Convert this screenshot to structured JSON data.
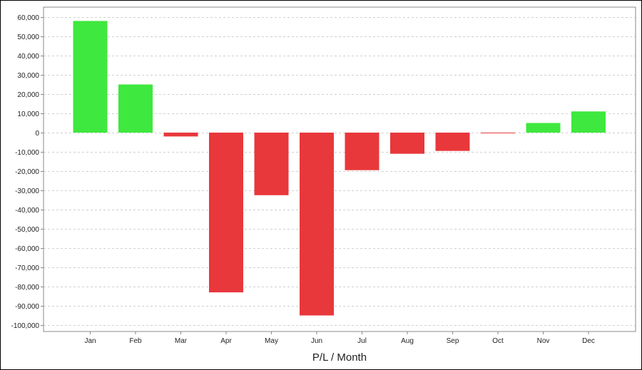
{
  "chart_data": {
    "type": "bar",
    "title": "",
    "xlabel": "P/L / Month",
    "ylabel": "",
    "categories": [
      "Jan",
      "Feb",
      "Mar",
      "Apr",
      "May",
      "Jun",
      "Jul",
      "Aug",
      "Sep",
      "Oct",
      "Nov",
      "Dec"
    ],
    "values": [
      58000,
      25000,
      -2000,
      -83000,
      -32500,
      -95000,
      -19500,
      -11000,
      -9500,
      -300,
      5000,
      11000
    ],
    "ylim": [
      -100000,
      60000
    ],
    "yticks": [
      60000,
      50000,
      40000,
      30000,
      20000,
      10000,
      0,
      -10000,
      -20000,
      -30000,
      -40000,
      -50000,
      -60000,
      -70000,
      -80000,
      -90000,
      -100000
    ],
    "ytick_labels": [
      "60,000",
      "50,000",
      "40,000",
      "30,000",
      "20,000",
      "10,000",
      "0",
      "-10,000",
      "-20,000",
      "-30,000",
      "-40,000",
      "-50,000",
      "-60,000",
      "-70,000",
      "-80,000",
      "-90,000",
      "-100,000"
    ],
    "grid": true,
    "legend": "none",
    "colors": {
      "positive": "#3ee83e",
      "negative": "#e8383c",
      "grid": "#d0d0d0",
      "axis": "#888888"
    }
  }
}
